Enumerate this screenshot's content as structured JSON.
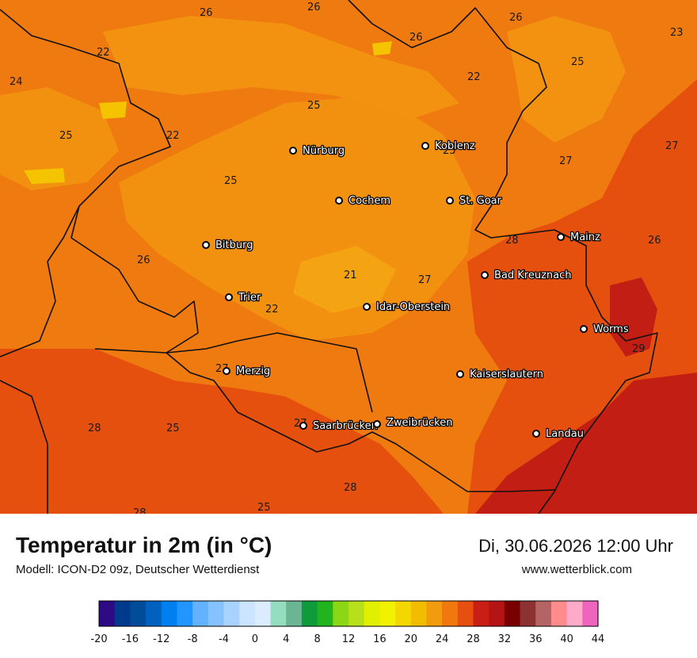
{
  "map": {
    "cities": [
      {
        "name": "Nürburg"
      },
      {
        "name": "Koblenz"
      },
      {
        "name": "Cochem"
      },
      {
        "name": "St. Goar"
      },
      {
        "name": "Bitburg"
      },
      {
        "name": "Mainz"
      },
      {
        "name": "Bad Kreuznach"
      },
      {
        "name": "Trier"
      },
      {
        "name": "Idar-Oberstein"
      },
      {
        "name": "Worms"
      },
      {
        "name": "Merzig"
      },
      {
        "name": "Kaiserslautern"
      },
      {
        "name": "Saarbrücken"
      },
      {
        "name": "Zweibrücken"
      },
      {
        "name": "Landau"
      }
    ],
    "temperature_labels": [
      "26",
      "26",
      "26",
      "26",
      "23",
      "22",
      "24",
      "25",
      "22",
      "22",
      "25",
      "25",
      "27",
      "27",
      "25",
      "25",
      "26",
      "28",
      "26",
      "21",
      "27",
      "22",
      "29",
      "27",
      "27",
      "28",
      "25",
      "28",
      "28",
      "25"
    ]
  },
  "footer": {
    "title": "Temperatur in 2m (in °C)",
    "subtitle": "Modell: ICON-D2 09z, Deutscher Wetterdienst",
    "datetime": "Di, 30.06.2026 12:00 Uhr",
    "website": "www.wetterblick.com"
  },
  "legend": {
    "ticks": [
      "-20",
      "-16",
      "-12",
      "-8",
      "-4",
      "0",
      "4",
      "8",
      "12",
      "16",
      "20",
      "24",
      "28",
      "32",
      "36",
      "40",
      "44"
    ],
    "colors": [
      "#2e0a85",
      "#003a8c",
      "#004c99",
      "#0062bf",
      "#0080f0",
      "#2196ff",
      "#62b2ff",
      "#86c2ff",
      "#a8d2ff",
      "#cce4ff",
      "#dcecff",
      "#96dcbe",
      "#6bb494",
      "#0f9b3c",
      "#21b41e",
      "#8bd716",
      "#b6e11a",
      "#e1f000",
      "#f2f200",
      "#f5d700",
      "#f2bc00",
      "#f29b0f",
      "#f0780f",
      "#e64f0f",
      "#c81e14",
      "#b41414",
      "#780000",
      "#8c3232",
      "#b46464",
      "#ff8c8c",
      "#ffaac8",
      "#ee64be"
    ]
  }
}
